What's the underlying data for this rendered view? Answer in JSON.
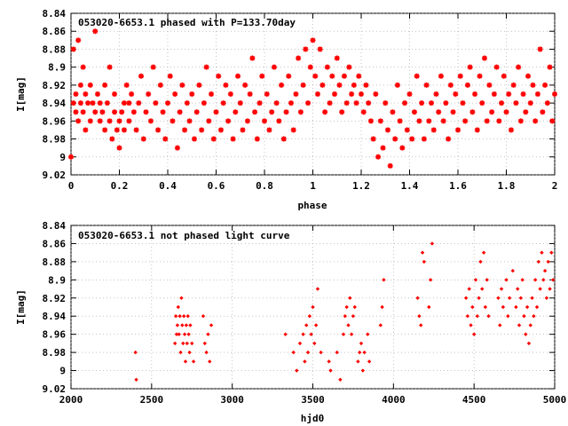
{
  "chart_data": [
    {
      "type": "scatter",
      "title": "053020-6653.1 phased with P=133.70day",
      "xlabel": "phase",
      "ylabel": "I[mag]",
      "xlim": [
        0,
        2
      ],
      "ylim": [
        8.84,
        9.02
      ],
      "y_inverted": true,
      "xticks": [
        "0",
        "0.2",
        "0.4",
        "0.6",
        "0.8",
        "1",
        "1.2",
        "1.4",
        "1.6",
        "1.8",
        "2"
      ],
      "yticks": [
        "8.84",
        "8.86",
        "8.88",
        "8.9",
        "8.92",
        "8.94",
        "8.96",
        "8.98",
        "9",
        "9.02"
      ],
      "marker": "asterisk",
      "color": "#ff0000",
      "points_phase": [
        [
          0.0,
          9.0
        ],
        [
          0.01,
          8.88
        ],
        [
          0.01,
          8.94
        ],
        [
          0.02,
          8.93
        ],
        [
          0.02,
          8.95
        ],
        [
          0.03,
          8.87
        ],
        [
          0.03,
          8.96
        ],
        [
          0.04,
          8.92
        ],
        [
          0.04,
          8.94
        ],
        [
          0.05,
          8.95
        ],
        [
          0.05,
          8.9
        ],
        [
          0.06,
          8.97
        ],
        [
          0.06,
          8.93
        ],
        [
          0.07,
          8.94
        ],
        [
          0.08,
          8.92
        ],
        [
          0.08,
          8.96
        ],
        [
          0.09,
          8.94
        ],
        [
          0.1,
          8.95
        ],
        [
          0.1,
          8.86
        ],
        [
          0.11,
          8.93
        ],
        [
          0.12,
          8.96
        ],
        [
          0.12,
          8.94
        ],
        [
          0.13,
          8.95
        ],
        [
          0.14,
          8.92
        ],
        [
          0.14,
          8.97
        ],
        [
          0.15,
          8.94
        ],
        [
          0.16,
          8.9
        ],
        [
          0.16,
          8.96
        ],
        [
          0.17,
          8.98
        ],
        [
          0.18,
          8.95
        ],
        [
          0.18,
          8.93
        ],
        [
          0.19,
          8.97
        ],
        [
          0.2,
          8.96
        ],
        [
          0.2,
          8.99
        ],
        [
          0.21,
          8.95
        ],
        [
          0.22,
          8.94
        ],
        [
          0.22,
          8.97
        ],
        [
          0.23,
          8.92
        ],
        [
          0.24,
          8.96
        ],
        [
          0.24,
          8.94
        ],
        [
          0.25,
          8.93
        ],
        [
          0.26,
          8.95
        ],
        [
          0.27,
          8.97
        ],
        [
          0.28,
          8.94
        ],
        [
          0.29,
          8.91
        ],
        [
          0.3,
          8.98
        ],
        [
          0.31,
          8.95
        ],
        [
          0.32,
          8.93
        ],
        [
          0.33,
          8.96
        ],
        [
          0.34,
          8.9
        ],
        [
          0.35,
          8.94
        ],
        [
          0.36,
          8.97
        ],
        [
          0.37,
          8.92
        ],
        [
          0.38,
          8.95
        ],
        [
          0.39,
          8.98
        ],
        [
          0.4,
          8.94
        ],
        [
          0.41,
          8.91
        ],
        [
          0.42,
          8.96
        ],
        [
          0.43,
          8.93
        ],
        [
          0.44,
          8.99
        ],
        [
          0.45,
          8.95
        ],
        [
          0.46,
          8.92
        ],
        [
          0.47,
          8.97
        ],
        [
          0.48,
          8.94
        ],
        [
          0.49,
          8.96
        ],
        [
          0.5,
          8.93
        ],
        [
          0.51,
          8.98
        ],
        [
          0.52,
          8.95
        ],
        [
          0.53,
          8.92
        ],
        [
          0.54,
          8.97
        ],
        [
          0.55,
          8.94
        ],
        [
          0.56,
          8.9
        ],
        [
          0.57,
          8.96
        ],
        [
          0.58,
          8.93
        ],
        [
          0.59,
          8.98
        ],
        [
          0.6,
          8.95
        ],
        [
          0.61,
          8.91
        ],
        [
          0.62,
          8.97
        ],
        [
          0.63,
          8.94
        ],
        [
          0.64,
          8.92
        ],
        [
          0.65,
          8.96
        ],
        [
          0.66,
          8.93
        ],
        [
          0.67,
          8.98
        ],
        [
          0.68,
          8.95
        ],
        [
          0.69,
          8.91
        ],
        [
          0.7,
          8.94
        ],
        [
          0.71,
          8.97
        ],
        [
          0.72,
          8.92
        ],
        [
          0.73,
          8.96
        ],
        [
          0.74,
          8.93
        ],
        [
          0.75,
          8.89
        ],
        [
          0.76,
          8.95
        ],
        [
          0.77,
          8.98
        ],
        [
          0.78,
          8.94
        ],
        [
          0.79,
          8.91
        ],
        [
          0.8,
          8.96
        ],
        [
          0.81,
          8.93
        ],
        [
          0.82,
          8.97
        ],
        [
          0.83,
          8.95
        ],
        [
          0.84,
          8.9
        ],
        [
          0.85,
          8.94
        ],
        [
          0.86,
          8.96
        ],
        [
          0.87,
          8.92
        ],
        [
          0.88,
          8.98
        ],
        [
          0.89,
          8.95
        ],
        [
          0.9,
          8.91
        ],
        [
          0.91,
          8.94
        ],
        [
          0.92,
          8.97
        ],
        [
          0.93,
          8.93
        ],
        [
          0.94,
          8.89
        ],
        [
          0.95,
          8.95
        ],
        [
          0.96,
          8.92
        ],
        [
          0.97,
          8.88
        ],
        [
          0.98,
          8.94
        ],
        [
          0.99,
          8.9
        ],
        [
          1.0,
          8.87
        ],
        [
          1.01,
          8.91
        ],
        [
          1.02,
          8.93
        ],
        [
          1.03,
          8.88
        ],
        [
          1.04,
          8.92
        ],
        [
          1.05,
          8.95
        ],
        [
          1.06,
          8.9
        ],
        [
          1.07,
          8.94
        ],
        [
          1.08,
          8.91
        ],
        [
          1.09,
          8.93
        ],
        [
          1.1,
          8.89
        ],
        [
          1.11,
          8.92
        ],
        [
          1.12,
          8.95
        ],
        [
          1.13,
          8.91
        ],
        [
          1.14,
          8.94
        ],
        [
          1.15,
          8.9
        ],
        [
          1.16,
          8.93
        ],
        [
          1.17,
          8.92
        ],
        [
          1.18,
          8.94
        ],
        [
          1.19,
          8.91
        ],
        [
          1.2,
          8.93
        ],
        [
          1.21,
          8.95
        ],
        [
          1.22,
          8.92
        ],
        [
          1.23,
          8.94
        ],
        [
          1.24,
          8.96
        ],
        [
          1.25,
          8.98
        ],
        [
          1.26,
          8.93
        ],
        [
          1.27,
          9.0
        ],
        [
          1.28,
          8.96
        ],
        [
          1.29,
          8.99
        ],
        [
          1.3,
          8.94
        ],
        [
          1.31,
          8.97
        ],
        [
          1.32,
          9.01
        ],
        [
          1.33,
          8.95
        ],
        [
          1.34,
          8.98
        ],
        [
          1.35,
          8.92
        ],
        [
          1.36,
          8.96
        ],
        [
          1.37,
          8.99
        ],
        [
          1.38,
          8.94
        ],
        [
          1.39,
          8.97
        ],
        [
          1.4,
          8.93
        ],
        [
          1.41,
          8.98
        ],
        [
          1.42,
          8.95
        ],
        [
          1.43,
          8.91
        ],
        [
          1.44,
          8.96
        ],
        [
          1.45,
          8.94
        ],
        [
          1.46,
          8.98
        ],
        [
          1.47,
          8.92
        ],
        [
          1.48,
          8.96
        ],
        [
          1.49,
          8.94
        ],
        [
          1.5,
          8.97
        ],
        [
          1.51,
          8.93
        ],
        [
          1.52,
          8.95
        ],
        [
          1.53,
          8.91
        ],
        [
          1.54,
          8.96
        ],
        [
          1.55,
          8.94
        ],
        [
          1.56,
          8.98
        ],
        [
          1.57,
          8.92
        ],
        [
          1.58,
          8.95
        ],
        [
          1.59,
          8.93
        ],
        [
          1.6,
          8.97
        ],
        [
          1.61,
          8.91
        ],
        [
          1.62,
          8.94
        ],
        [
          1.63,
          8.96
        ],
        [
          1.64,
          8.92
        ],
        [
          1.65,
          8.9
        ],
        [
          1.66,
          8.95
        ],
        [
          1.67,
          8.93
        ],
        [
          1.68,
          8.97
        ],
        [
          1.69,
          8.91
        ],
        [
          1.7,
          8.94
        ],
        [
          1.71,
          8.89
        ],
        [
          1.72,
          8.96
        ],
        [
          1.73,
          8.92
        ],
        [
          1.74,
          8.95
        ],
        [
          1.75,
          8.93
        ],
        [
          1.76,
          8.9
        ],
        [
          1.77,
          8.96
        ],
        [
          1.78,
          8.94
        ],
        [
          1.79,
          8.91
        ],
        [
          1.8,
          8.95
        ],
        [
          1.81,
          8.93
        ],
        [
          1.82,
          8.97
        ],
        [
          1.83,
          8.92
        ],
        [
          1.84,
          8.94
        ],
        [
          1.85,
          8.9
        ],
        [
          1.86,
          8.96
        ],
        [
          1.87,
          8.93
        ],
        [
          1.88,
          8.95
        ],
        [
          1.89,
          8.91
        ],
        [
          1.9,
          8.94
        ],
        [
          1.91,
          8.92
        ],
        [
          1.92,
          8.96
        ],
        [
          1.93,
          8.93
        ],
        [
          1.94,
          8.88
        ],
        [
          1.95,
          8.95
        ],
        [
          1.96,
          8.92
        ],
        [
          1.97,
          8.94
        ],
        [
          1.98,
          8.9
        ],
        [
          1.99,
          8.96
        ],
        [
          2.0,
          8.93
        ]
      ]
    },
    {
      "type": "scatter",
      "title": "053020-6653.1 not phased light curve",
      "xlabel": "hjd0",
      "ylabel": "I[mag]",
      "xlim": [
        2000,
        5000
      ],
      "ylim": [
        8.84,
        9.02
      ],
      "y_inverted": true,
      "xticks": [
        "2000",
        "2500",
        "3000",
        "3500",
        "4000",
        "4500",
        "5000"
      ],
      "yticks": [
        "8.84",
        "8.86",
        "8.88",
        "8.9",
        "8.92",
        "8.94",
        "8.96",
        "8.98",
        "9",
        "9.02"
      ],
      "marker": "diamond",
      "color": "#ff0000",
      "points_hjd": [
        [
          2400,
          8.98
        ],
        [
          2405,
          9.01
        ],
        [
          2645,
          8.97
        ],
        [
          2650,
          8.94
        ],
        [
          2655,
          8.96
        ],
        [
          2660,
          8.95
        ],
        [
          2665,
          8.93
        ],
        [
          2670,
          8.96
        ],
        [
          2675,
          8.94
        ],
        [
          2680,
          8.98
        ],
        [
          2685,
          8.92
        ],
        [
          2690,
          8.95
        ],
        [
          2695,
          8.97
        ],
        [
          2700,
          8.94
        ],
        [
          2705,
          8.96
        ],
        [
          2710,
          8.99
        ],
        [
          2715,
          8.95
        ],
        [
          2720,
          8.97
        ],
        [
          2725,
          8.94
        ],
        [
          2730,
          8.96
        ],
        [
          2735,
          8.98
        ],
        [
          2740,
          8.95
        ],
        [
          2750,
          8.97
        ],
        [
          2760,
          8.99
        ],
        [
          2820,
          8.94
        ],
        [
          2830,
          8.97
        ],
        [
          2840,
          8.98
        ],
        [
          2850,
          8.96
        ],
        [
          2860,
          8.99
        ],
        [
          2870,
          8.95
        ],
        [
          3330,
          8.96
        ],
        [
          3380,
          8.98
        ],
        [
          3400,
          9.0
        ],
        [
          3420,
          8.97
        ],
        [
          3440,
          8.96
        ],
        [
          3450,
          8.99
        ],
        [
          3460,
          8.95
        ],
        [
          3470,
          8.98
        ],
        [
          3480,
          8.94
        ],
        [
          3490,
          8.96
        ],
        [
          3500,
          8.93
        ],
        [
          3510,
          8.97
        ],
        [
          3520,
          8.95
        ],
        [
          3530,
          8.91
        ],
        [
          3550,
          8.98
        ],
        [
          3600,
          8.99
        ],
        [
          3610,
          9.0
        ],
        [
          3650,
          8.98
        ],
        [
          3670,
          9.01
        ],
        [
          3690,
          8.96
        ],
        [
          3700,
          8.94
        ],
        [
          3710,
          8.93
        ],
        [
          3720,
          8.95
        ],
        [
          3730,
          8.92
        ],
        [
          3740,
          8.96
        ],
        [
          3750,
          8.94
        ],
        [
          3760,
          8.93
        ],
        [
          3780,
          8.99
        ],
        [
          3790,
          8.98
        ],
        [
          3800,
          8.97
        ],
        [
          3810,
          9.0
        ],
        [
          3820,
          8.98
        ],
        [
          3840,
          8.96
        ],
        [
          3850,
          8.99
        ],
        [
          3920,
          8.95
        ],
        [
          3930,
          8.93
        ],
        [
          3940,
          8.9
        ],
        [
          4150,
          8.92
        ],
        [
          4160,
          8.94
        ],
        [
          4170,
          8.95
        ],
        [
          4180,
          8.87
        ],
        [
          4190,
          8.88
        ],
        [
          4220,
          8.93
        ],
        [
          4230,
          8.9
        ],
        [
          4240,
          8.86
        ],
        [
          4450,
          8.92
        ],
        [
          4460,
          8.94
        ],
        [
          4470,
          8.91
        ],
        [
          4480,
          8.95
        ],
        [
          4490,
          8.93
        ],
        [
          4500,
          8.96
        ],
        [
          4510,
          8.9
        ],
        [
          4520,
          8.94
        ],
        [
          4530,
          8.92
        ],
        [
          4540,
          8.88
        ],
        [
          4550,
          8.91
        ],
        [
          4560,
          8.87
        ],
        [
          4570,
          8.93
        ],
        [
          4580,
          8.9
        ],
        [
          4590,
          8.94
        ],
        [
          4650,
          8.92
        ],
        [
          4660,
          8.95
        ],
        [
          4670,
          8.91
        ],
        [
          4680,
          8.93
        ],
        [
          4700,
          8.9
        ],
        [
          4710,
          8.94
        ],
        [
          4720,
          8.92
        ],
        [
          4740,
          8.89
        ],
        [
          4760,
          8.93
        ],
        [
          4770,
          8.91
        ],
        [
          4780,
          8.95
        ],
        [
          4790,
          8.92
        ],
        [
          4800,
          8.9
        ],
        [
          4810,
          8.94
        ],
        [
          4820,
          8.96
        ],
        [
          4830,
          8.93
        ],
        [
          4840,
          8.97
        ],
        [
          4850,
          8.95
        ],
        [
          4860,
          8.92
        ],
        [
          4870,
          8.94
        ],
        [
          4880,
          8.9
        ],
        [
          4890,
          8.93
        ],
        [
          4900,
          8.88
        ],
        [
          4910,
          8.91
        ],
        [
          4920,
          8.87
        ],
        [
          4930,
          8.9
        ],
        [
          4940,
          8.89
        ],
        [
          4950,
          8.92
        ],
        [
          4960,
          8.88
        ],
        [
          4970,
          8.91
        ],
        [
          4980,
          8.87
        ],
        [
          4990,
          8.9
        ]
      ]
    }
  ]
}
